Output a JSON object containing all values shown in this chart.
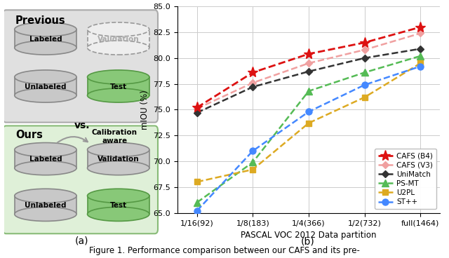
{
  "x_labels": [
    "1/16(92)",
    "1/8(183)",
    "1/4(366)",
    "1/2(732)",
    "full(1464)"
  ],
  "x_vals": [
    0,
    1,
    2,
    3,
    4
  ],
  "cafs_b4": [
    75.2,
    78.6,
    80.4,
    81.5,
    83.0
  ],
  "cafs_v3": [
    75.1,
    77.6,
    79.5,
    80.8,
    82.4
  ],
  "unimatch": [
    74.7,
    77.2,
    78.7,
    80.0,
    80.9
  ],
  "psmt": [
    66.0,
    69.9,
    76.8,
    78.6,
    80.2
  ],
  "u2pl": [
    68.0,
    69.2,
    73.7,
    76.2,
    79.5
  ],
  "stpp": [
    65.2,
    71.0,
    74.8,
    77.4,
    79.2
  ],
  "ylabel": "mIOU (%)",
  "xlabel": "PASCAL VOC 2012 Data partition",
  "ylim": [
    65.0,
    85.0
  ],
  "yticks": [
    65.0,
    67.5,
    70.0,
    72.5,
    75.0,
    77.5,
    80.0,
    82.5,
    85.0
  ],
  "colors": {
    "cafs_b4": "#dd1111",
    "cafs_v3": "#f0a0a0",
    "unimatch": "#333333",
    "psmt": "#55bb55",
    "u2pl": "#ddaa22",
    "stpp": "#4488ff"
  },
  "legend_labels": [
    "CAFS (B4)",
    "CAFS (V3)",
    "UniMatch",
    "PS-MT",
    "U2PL",
    "ST++"
  ],
  "bg_color": "#ffffff",
  "grid_color": "#cccccc",
  "prev_box_color": "#e0e0e0",
  "prev_box_edge": "#aaaaaa",
  "ours_box_color": "#dff0d8",
  "ours_box_edge": "#88bb77",
  "cyl_gray": "#c8c8c8",
  "cyl_gray_edge": "#888888",
  "cyl_green": "#88c878",
  "cyl_green_edge": "#559944",
  "cyl_dashed_fill": "#eeeeee",
  "cyl_dashed_edge": "#999999",
  "arrow_color": "#999999"
}
